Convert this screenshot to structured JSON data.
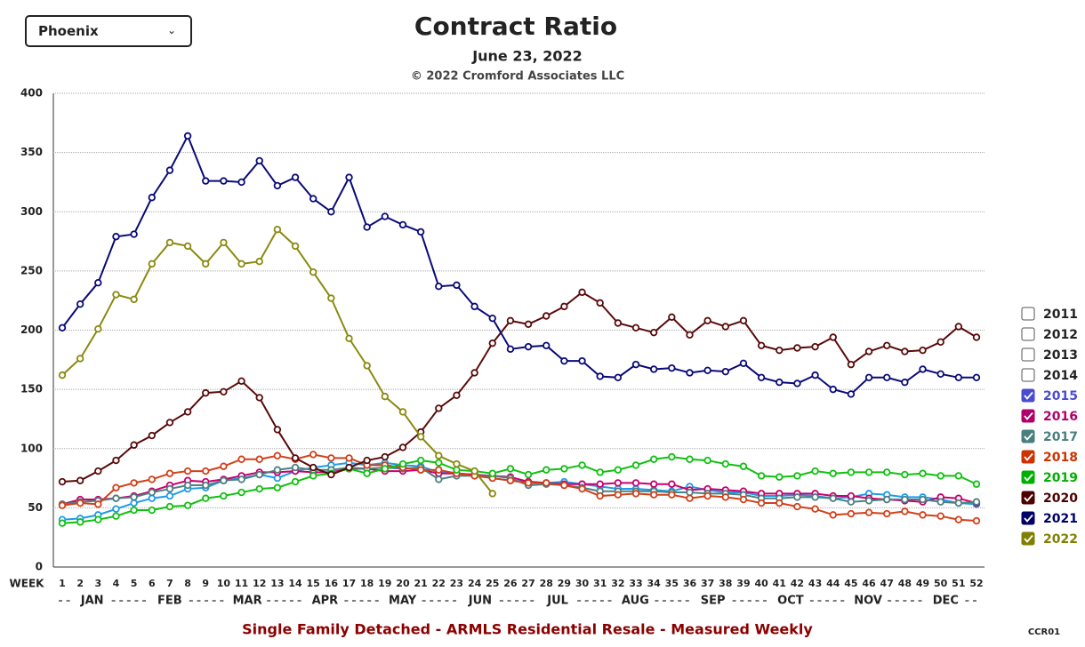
{
  "dropdown": "Phoenix",
  "chart_data": {
    "type": "line",
    "title": "Contract Ratio",
    "subtitle": "June 23, 2022",
    "copyright": "© 2022 Cromford Associates LLC",
    "footer": "Single Family Detached - ARMLS Residential Resale - Measured Weekly",
    "code": "CCR01",
    "x_label": "WEEK",
    "categories": [
      "1",
      "2",
      "3",
      "4",
      "5",
      "6",
      "7",
      "8",
      "9",
      "10",
      "11",
      "12",
      "13",
      "14",
      "15",
      "16",
      "17",
      "18",
      "19",
      "20",
      "21",
      "22",
      "23",
      "24",
      "25",
      "26",
      "27",
      "28",
      "29",
      "30",
      "31",
      "32",
      "33",
      "34",
      "35",
      "36",
      "37",
      "38",
      "39",
      "40",
      "41",
      "42",
      "43",
      "44",
      "45",
      "46",
      "47",
      "48",
      "49",
      "50",
      "51",
      "52"
    ],
    "months": [
      "JAN",
      "FEB",
      "MAR",
      "APR",
      "MAY",
      "JUN",
      "JUL",
      "AUG",
      "SEP",
      "OCT",
      "NOV",
      "DEC"
    ],
    "ylim": [
      0,
      400
    ],
    "yticks": [
      0,
      50,
      100,
      150,
      200,
      250,
      300,
      350,
      400
    ],
    "grid": true,
    "legend_position": "right",
    "inactive_series": [
      "2011",
      "2012",
      "2013",
      "2014"
    ],
    "series": [
      {
        "name": "2015",
        "color": "#1e9be8",
        "legend_color": "#4b4bd0",
        "values": [
          40,
          41,
          44,
          49,
          54,
          58,
          60,
          66,
          67,
          73,
          75,
          78,
          75,
          81,
          84,
          86,
          88,
          86,
          88,
          86,
          85,
          80,
          79,
          78,
          75,
          73,
          72,
          71,
          72,
          70,
          68,
          66,
          66,
          65,
          64,
          68,
          65,
          63,
          63,
          60,
          60,
          61,
          60,
          58,
          59,
          62,
          61,
          59,
          59,
          57,
          54,
          53
        ]
      },
      {
        "name": "2016",
        "color": "#c8006e",
        "legend_color": "#b0006a",
        "values": [
          53,
          57,
          57,
          58,
          60,
          64,
          69,
          73,
          72,
          74,
          77,
          80,
          80,
          81,
          80,
          80,
          83,
          83,
          81,
          81,
          82,
          79,
          79,
          78,
          77,
          76,
          72,
          71,
          70,
          70,
          70,
          71,
          71,
          70,
          70,
          65,
          66,
          65,
          64,
          62,
          62,
          62,
          62,
          60,
          60,
          58,
          57,
          56,
          55,
          59,
          58,
          54
        ]
      },
      {
        "name": "2017",
        "color": "#4d8080",
        "legend_color": "#4a7f7f",
        "values": [
          53,
          55,
          56,
          58,
          59,
          63,
          66,
          69,
          69,
          73,
          74,
          78,
          82,
          84,
          82,
          82,
          84,
          83,
          84,
          83,
          84,
          74,
          77,
          77,
          77,
          75,
          69,
          70,
          69,
          67,
          64,
          64,
          64,
          64,
          63,
          63,
          62,
          62,
          61,
          58,
          58,
          59,
          59,
          58,
          55,
          56,
          57,
          57,
          57,
          55,
          54,
          55
        ]
      },
      {
        "name": "2018",
        "color": "#d2401a",
        "legend_color": "#cc3300",
        "values": [
          52,
          54,
          53,
          67,
          71,
          74,
          79,
          81,
          81,
          85,
          91,
          91,
          94,
          91,
          95,
          92,
          92,
          86,
          86,
          84,
          82,
          82,
          79,
          77,
          75,
          73,
          71,
          71,
          69,
          66,
          60,
          61,
          62,
          61,
          61,
          58,
          60,
          59,
          57,
          54,
          54,
          51,
          49,
          44,
          45,
          46,
          45,
          47,
          44,
          43,
          40,
          39
        ]
      },
      {
        "name": "2019",
        "color": "#10c010",
        "legend_color": "#00b000",
        "values": [
          37,
          38,
          40,
          43,
          48,
          48,
          51,
          52,
          58,
          60,
          63,
          66,
          67,
          72,
          77,
          79,
          83,
          79,
          83,
          87,
          90,
          88,
          82,
          81,
          79,
          83,
          78,
          82,
          83,
          86,
          80,
          82,
          86,
          91,
          93,
          91,
          90,
          87,
          85,
          77,
          76,
          77,
          81,
          79,
          80,
          80,
          80,
          78,
          79,
          77,
          77,
          70
        ]
      },
      {
        "name": "2020",
        "color": "#5a0a0a",
        "legend_color": "#4d0000",
        "values": [
          72,
          73,
          81,
          90,
          103,
          111,
          122,
          131,
          147,
          148,
          157,
          143,
          116,
          92,
          84,
          78,
          84,
          90,
          93,
          101,
          114,
          134,
          145,
          164,
          189,
          208,
          205,
          212,
          220,
          232,
          223,
          206,
          202,
          198,
          211,
          196,
          208,
          203,
          208,
          187,
          183,
          185,
          186,
          194,
          171,
          182,
          187,
          182,
          183,
          190,
          203,
          194
        ]
      },
      {
        "name": "2021",
        "color": "#0a0a78",
        "legend_color": "#000066",
        "values": [
          202,
          222,
          240,
          279,
          281,
          312,
          335,
          364,
          326,
          326,
          325,
          343,
          322,
          329,
          311,
          300,
          329,
          287,
          296,
          289,
          283,
          237,
          238,
          220,
          210,
          184,
          186,
          187,
          174,
          174,
          161,
          160,
          171,
          167,
          168,
          164,
          166,
          165,
          172,
          160,
          156,
          155,
          162,
          150,
          146,
          160,
          160,
          156,
          167,
          163,
          160,
          160
        ]
      },
      {
        "name": "2022",
        "color": "#8a8a10",
        "legend_color": "#808000",
        "values": [
          162,
          176,
          201,
          230,
          226,
          256,
          274,
          271,
          256,
          274,
          256,
          258,
          285,
          271,
          249,
          227,
          193,
          170,
          144,
          131,
          110,
          94,
          87,
          81,
          62,
          null,
          null,
          null,
          null,
          null,
          null,
          null,
          null,
          null,
          null,
          null,
          null,
          null,
          null,
          null,
          null,
          null,
          null,
          null,
          null,
          null,
          null,
          null,
          null,
          null,
          null,
          null
        ]
      }
    ]
  }
}
